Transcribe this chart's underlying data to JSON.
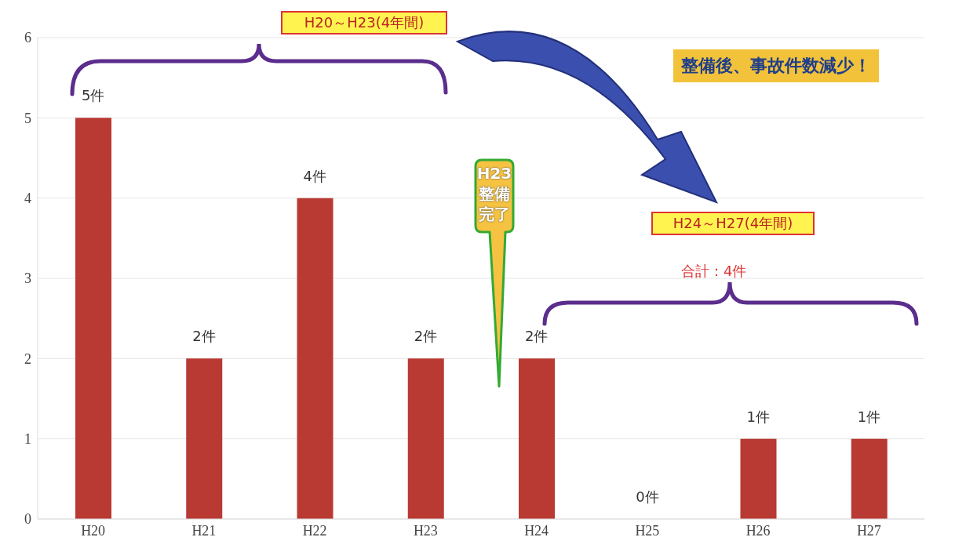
{
  "chart_data": {
    "type": "bar",
    "categories": [
      "H20",
      "H21",
      "H22",
      "H23",
      "H24",
      "H25",
      "H26",
      "H27"
    ],
    "values": [
      5,
      2,
      4,
      2,
      2,
      0,
      1,
      1
    ],
    "value_labels": [
      "5件",
      "2件",
      "4件",
      "2件",
      "2件",
      "0件",
      "1件",
      "1件"
    ],
    "color": "#b83a32",
    "ylim": [
      0,
      6
    ],
    "yticks": [
      0,
      1,
      2,
      3,
      4,
      5,
      6
    ],
    "grid": "y",
    "annotations": [
      "H20～H23(4年間)",
      "H24～H27(4年間)",
      "合計：4件",
      "H23整備完了",
      "整備後、事故件数減少！"
    ]
  }
}
